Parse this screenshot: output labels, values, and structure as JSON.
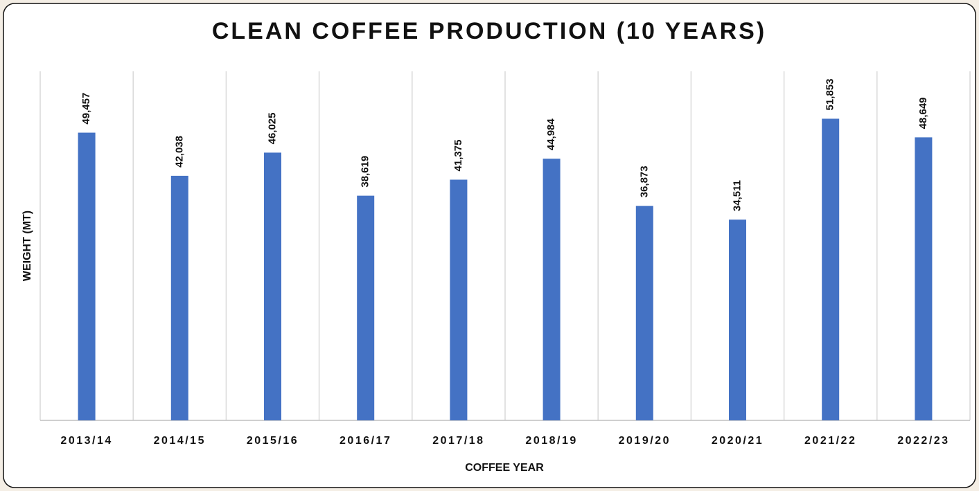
{
  "chart_data": {
    "type": "bar",
    "title": "CLEAN COFFEE PRODUCTION (10 YEARS)",
    "x_label": "COFFEE YEAR",
    "y_label": "WEIGHT (MT)",
    "categories": [
      "2013/14",
      "2014/15",
      "2015/16",
      "2016/17",
      "2017/18",
      "2018/19",
      "2019/20",
      "2020/21",
      "2021/22",
      "2022/23"
    ],
    "values": [
      49457,
      42038,
      46025,
      38619,
      41375,
      44984,
      36873,
      34511,
      51853,
      48649
    ],
    "value_labels": [
      "49,457",
      "42,038",
      "46,025",
      "38,619",
      "41,375",
      "44,984",
      "36,873",
      "34,511",
      "51,853",
      "48,649"
    ],
    "color": "#4472c4",
    "ylim": [
      0,
      60000
    ],
    "grid": true
  }
}
